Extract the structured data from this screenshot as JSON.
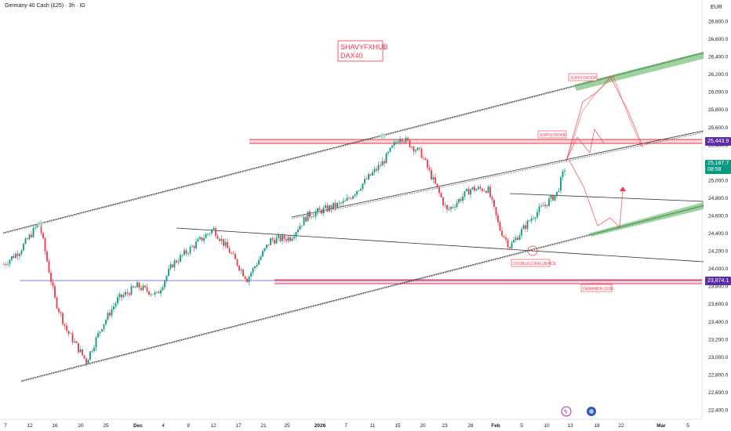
{
  "header": {
    "symbol": "Germany 40 Cash (£25) · 3h · IG"
  },
  "currency": "EUR",
  "watermark": {
    "line1": "SHAVYFXHUB",
    "line2": "DAX40"
  },
  "annotations": {
    "supply_roof_top": "SUPPLYROOF",
    "supply_roof_mid": "SUPPLYROOF",
    "double_confluence": "DOUBLECONFLUENCE",
    "demand_floor": "DEMANDFLOOR"
  },
  "price_badges": {
    "supply": "25,443.9",
    "current_price": "25,187.7",
    "current_time": "08:58",
    "demand": "23,874.1"
  },
  "colors": {
    "up": "#089981",
    "down": "#f23645",
    "supply_line": "#f23645",
    "demand_line": "#5b4fd1",
    "channel": "#333333",
    "green_zone": "#4caf50",
    "badge_purple": "#5b2ea6",
    "badge_green": "#089981"
  },
  "chart_data": {
    "type": "candlestick",
    "title": "Germany 40 Cash (£25) · 3h · IG",
    "ylabel": "EUR",
    "ylim": [
      22400,
      26900
    ],
    "y_ticks": [
      "26,800.0",
      "26,600.0",
      "26,400.0",
      "26,200.0",
      "26,000.0",
      "25,800.0",
      "25,600.0",
      "25,400.0",
      "25,200.0",
      "25,000.0",
      "24,800.0",
      "24,600.0",
      "24,400.0",
      "24,200.0",
      "24,000.0",
      "23,800.0",
      "23,600.0",
      "23,400.0",
      "23,200.0",
      "23,000.0",
      "22,800.0",
      "22,600.0",
      "22,400.0"
    ],
    "x_ticks": [
      "7",
      "12",
      "16",
      "20",
      "25",
      "Dec",
      "4",
      "9",
      "12",
      "17",
      "21",
      "25",
      "2026",
      "7",
      "11",
      "15",
      "20",
      "23",
      "28",
      "Feb",
      "5",
      "10",
      "13",
      "18",
      "22",
      "Mar",
      "5"
    ],
    "key_levels": {
      "supply_roof": 25443.9,
      "demand_floor": 23874.1,
      "last_price": 25187.7
    },
    "price_path": [
      {
        "x": "7",
        "y": 24050
      },
      {
        "x": "10",
        "y": 24200
      },
      {
        "x": "12",
        "y": 24520
      },
      {
        "x": "16",
        "y": 23650
      },
      {
        "x": "18",
        "y": 23300
      },
      {
        "x": "21",
        "y": 22950
      },
      {
        "x": "25",
        "y": 23350
      },
      {
        "x": "28",
        "y": 23650
      },
      {
        "x": "Dec",
        "y": 23800
      },
      {
        "x": "4",
        "y": 23700
      },
      {
        "x": "8",
        "y": 24050
      },
      {
        "x": "12",
        "y": 24450
      },
      {
        "x": "15",
        "y": 24200
      },
      {
        "x": "18",
        "y": 23880
      },
      {
        "x": "21",
        "y": 24320
      },
      {
        "x": "25",
        "y": 24350
      },
      {
        "x": "29",
        "y": 24600
      },
      {
        "x": "2026",
        "y": 24750
      },
      {
        "x": "7",
        "y": 25200
      },
      {
        "x": "11",
        "y": 25500
      },
      {
        "x": "15",
        "y": 25300
      },
      {
        "x": "20",
        "y": 24650
      },
      {
        "x": "23",
        "y": 24900
      },
      {
        "x": "28",
        "y": 24900
      },
      {
        "x": "Feb",
        "y": 24450
      },
      {
        "x": "3",
        "y": 24250
      },
      {
        "x": "5",
        "y": 24600
      },
      {
        "x": "9",
        "y": 24850
      },
      {
        "x": "13",
        "y": 25190
      }
    ]
  }
}
